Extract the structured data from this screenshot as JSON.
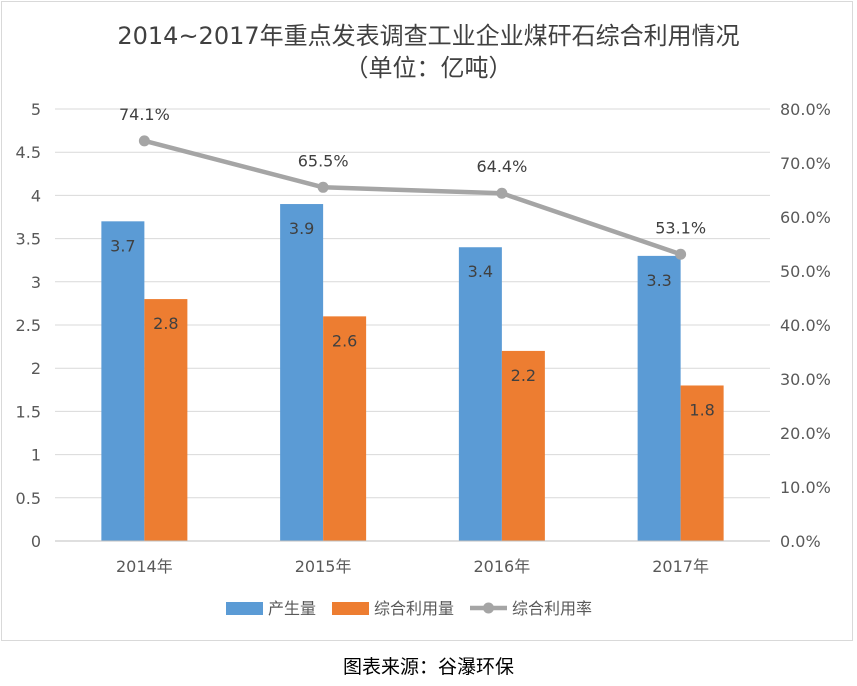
{
  "title_line1": "2014~2017年重点发表调查工业企业煤矸石综合利用情况",
  "title_line2": "（单位：亿吨）",
  "source": "图表来源：谷瀑环保",
  "chart_data": {
    "type": "bar",
    "categories": [
      "2014年",
      "2015年",
      "2016年",
      "2017年"
    ],
    "series": [
      {
        "name": "产生量",
        "type": "bar",
        "axis": "left",
        "color": "#5b9bd5",
        "values": [
          3.7,
          3.9,
          3.4,
          3.3
        ],
        "labels": [
          "3.7",
          "3.9",
          "3.4",
          "3.3"
        ]
      },
      {
        "name": "综合利用量",
        "type": "bar",
        "axis": "left",
        "color": "#ed7d31",
        "values": [
          2.8,
          2.6,
          2.2,
          1.8
        ],
        "labels": [
          "2.8",
          "2.6",
          "2.2",
          "1.8"
        ]
      },
      {
        "name": "综合利用率",
        "type": "line",
        "axis": "right",
        "color": "#a5a5a5",
        "values": [
          74.1,
          65.5,
          64.4,
          53.1
        ],
        "labels": [
          "74.1%",
          "65.5%",
          "64.4%",
          "53.1%"
        ]
      }
    ],
    "y_left": {
      "min": 0,
      "max": 5,
      "step": 0.5,
      "ticks": [
        "0",
        "0.5",
        "1",
        "1.5",
        "2",
        "2.5",
        "3",
        "3.5",
        "4",
        "4.5",
        "5"
      ]
    },
    "y_right": {
      "min": 0,
      "max": 80,
      "step": 10,
      "ticks": [
        "0.0%",
        "10.0%",
        "20.0%",
        "30.0%",
        "40.0%",
        "50.0%",
        "60.0%",
        "70.0%",
        "80.0%"
      ]
    },
    "grid": true,
    "legend_position": "bottom"
  }
}
